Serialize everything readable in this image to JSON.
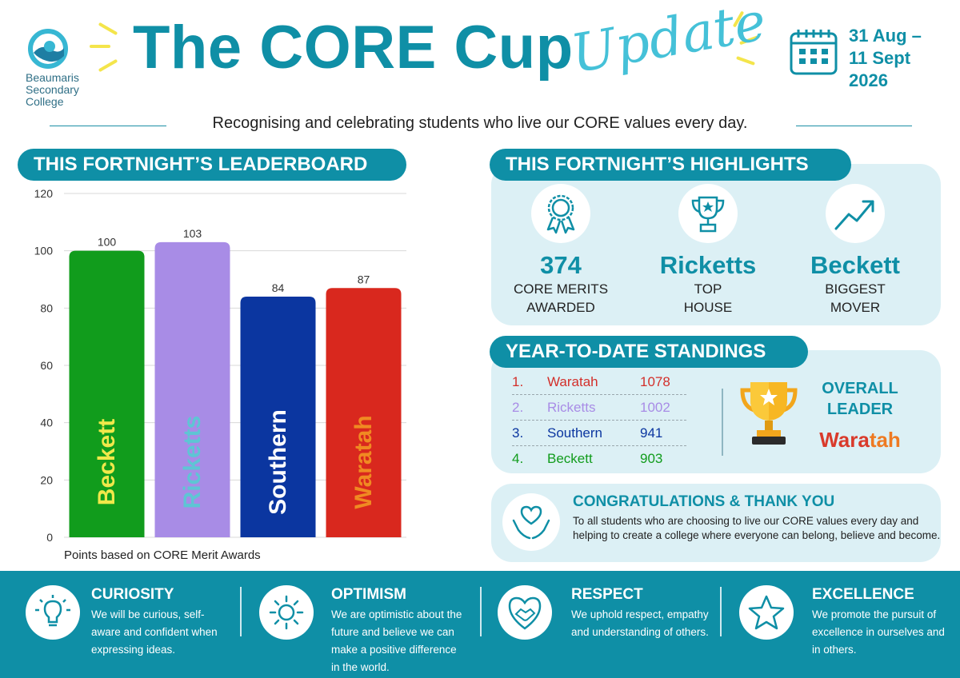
{
  "header": {
    "logo_lines": [
      "Beaumaris",
      "Secondary",
      "College"
    ],
    "title": "The CORE Cup",
    "title_script": "Update",
    "date_lines": [
      "31 Aug –",
      "11 Sept",
      "2026"
    ],
    "subtitle": "Recognising and celebrating students who live our CORE values every day."
  },
  "leaderboard": {
    "heading": "THIS FORTNIGHT’S LEADERBOARD",
    "note": "Points based on CORE Merit Awards"
  },
  "chart_data": {
    "type": "bar",
    "categories": [
      "Beckett",
      "Ricketts",
      "Southern",
      "Waratah"
    ],
    "values": [
      100,
      103,
      84,
      87
    ],
    "bar_colors": [
      "#119c1c",
      "#a88ce6",
      "#0b36a0",
      "#d9281e"
    ],
    "label_colors": [
      "#f0e84a",
      "#5ec5d4",
      "#ffffff",
      "#f08a22"
    ],
    "ylim": [
      0,
      120
    ],
    "yticks": [
      0,
      20,
      40,
      60,
      80,
      100,
      120
    ],
    "grid": true,
    "title": "",
    "xlabel": "",
    "ylabel": ""
  },
  "highlights": {
    "heading": "THIS FORTNIGHT’S  HIGHLIGHTS",
    "items": [
      {
        "value": "374",
        "label_lines": [
          "CORE MERITS",
          "AWARDED"
        ],
        "icon": "award-ribbon-icon"
      },
      {
        "value": "Ricketts",
        "label_lines": [
          "TOP",
          "HOUSE"
        ],
        "icon": "trophy-icon"
      },
      {
        "value": "Beckett",
        "label_lines": [
          "BIGGEST",
          "MOVER"
        ],
        "icon": "trend-up-icon"
      }
    ]
  },
  "standings": {
    "heading": "YEAR-TO-DATE STANDINGS",
    "rows": [
      {
        "rank": "1.",
        "house": "Waratah",
        "points": "1078",
        "color": "#d32f2a"
      },
      {
        "rank": "2.",
        "house": "Ricketts",
        "points": "1002",
        "color": "#a88ce6"
      },
      {
        "rank": "3.",
        "house": "Southern",
        "points": "941",
        "color": "#0b36a0"
      },
      {
        "rank": "4.",
        "house": "Beckett",
        "points": "903",
        "color": "#119c1c"
      }
    ],
    "overall_lines": [
      "OVERALL",
      "LEADER"
    ],
    "overall_winner_a": "Wara",
    "overall_winner_b": "tah"
  },
  "congrats": {
    "title": "CONGRATULATIONS & THANK YOU",
    "text": "To all students who are choosing to live our CORE values every day and helping to create a college where everyone can belong, believe and become."
  },
  "values": [
    {
      "title": "CURIOSITY",
      "text": "We will be curious, self-aware and confident when expressing ideas.",
      "icon": "lightbulb-icon"
    },
    {
      "title": "OPTIMISM",
      "text": "We are optimistic about the future and believe we can make a positive difference in the world.",
      "icon": "sun-icon"
    },
    {
      "title": "RESPECT",
      "text": "We uphold respect, empathy and understanding of others.",
      "icon": "handshake-heart-icon"
    },
    {
      "title": "EXCELLENCE",
      "text": "We promote the pursuit of excellence in ourselves and in others.",
      "icon": "star-icon"
    }
  ]
}
